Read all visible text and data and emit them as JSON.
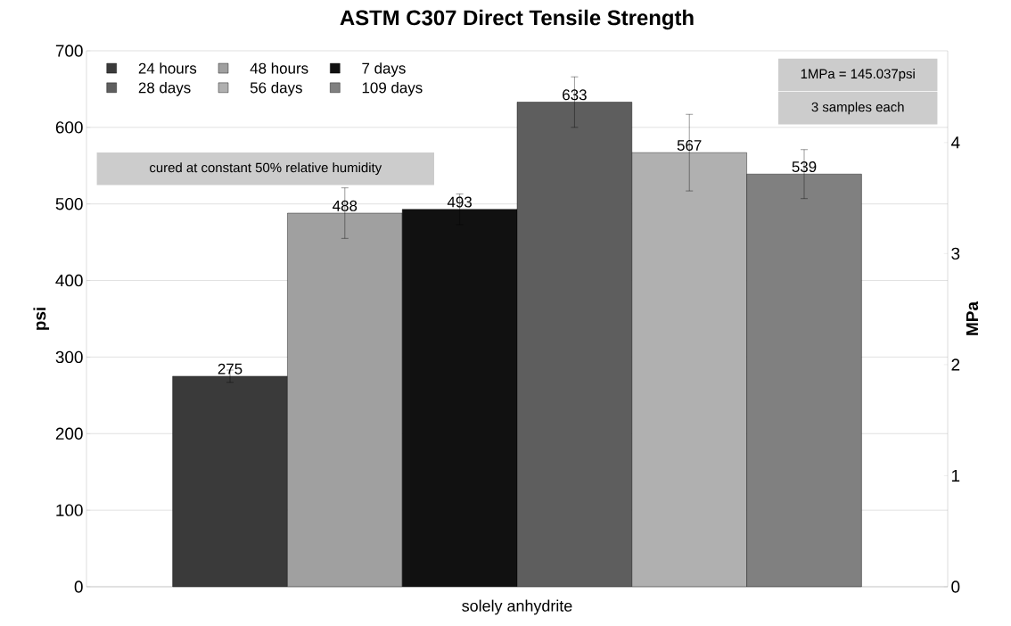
{
  "chart_data": {
    "type": "bar",
    "title": "ASTM C307 Direct Tensile Strength",
    "xlabel": "solely anhydrite",
    "ylabel": "psi",
    "y2label": "MPa",
    "categories": [
      null
    ],
    "series": [
      {
        "name": "24 hours",
        "color": "#3a3a3a",
        "values": [
          275
        ],
        "errors": [
          8
        ]
      },
      {
        "name": "48 hours",
        "color": "#a0a0a0",
        "values": [
          488
        ],
        "errors": [
          33
        ]
      },
      {
        "name": "7 days",
        "color": "#111111",
        "values": [
          493
        ],
        "errors": [
          20
        ]
      },
      {
        "name": "28 days",
        "color": "#5e5e5e",
        "values": [
          633
        ],
        "errors": [
          33
        ]
      },
      {
        "name": "56 days",
        "color": "#b0b0b0",
        "values": [
          567
        ],
        "errors": [
          50
        ]
      },
      {
        "name": "109 days",
        "color": "#808080",
        "values": [
          539
        ],
        "errors": [
          32
        ]
      }
    ],
    "ylim": [
      0,
      700
    ],
    "yticks": [
      0,
      100,
      200,
      300,
      400,
      500,
      600,
      700
    ],
    "y2lim": [
      0,
      4.826
    ],
    "y2ticks": [
      0,
      1,
      2,
      3,
      4
    ],
    "grid": "y",
    "legend": "top left",
    "data_labels": true,
    "annotations": [
      "cured at constant 50% relative humidity",
      "1MPa = 145.037psi",
      "3 samples each"
    ]
  }
}
